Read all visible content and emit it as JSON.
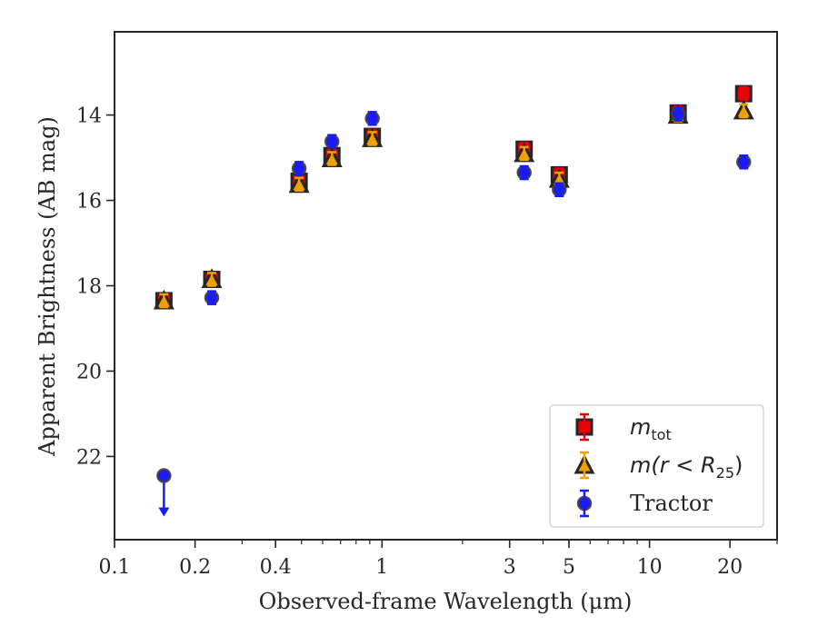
{
  "chart_data": {
    "type": "scatter",
    "title": "",
    "xlabel": "Observed-frame Wavelength (μm)",
    "ylabel": "Apparent Brightness (AB mag)",
    "xscale": "log",
    "xlim": [
      0.1,
      30
    ],
    "ylim": [
      23.95,
      12.05
    ],
    "y_inverted": true,
    "grid": false,
    "legend_position": "lower-right",
    "x_ticks": [
      {
        "value": 0.1,
        "label": "0.1"
      },
      {
        "value": 0.2,
        "label": "0.2"
      },
      {
        "value": 0.4,
        "label": "0.4"
      },
      {
        "value": 1,
        "label": "1"
      },
      {
        "value": 3,
        "label": "3"
      },
      {
        "value": 5,
        "label": "5"
      },
      {
        "value": 10,
        "label": "10"
      },
      {
        "value": 20,
        "label": "20"
      }
    ],
    "y_ticks": [
      {
        "value": 14,
        "label": "14"
      },
      {
        "value": 16,
        "label": "16"
      },
      {
        "value": 18,
        "label": "18"
      },
      {
        "value": 20,
        "label": "20"
      },
      {
        "value": 22,
        "label": "22"
      }
    ],
    "series": [
      {
        "name_main": "m",
        "name_sub": "tot",
        "marker": "square",
        "color": "#e8000b",
        "errorbar_color": "#e8000b",
        "points": [
          {
            "x": 0.153,
            "y": 18.35
          },
          {
            "x": 0.231,
            "y": 17.85
          },
          {
            "x": 0.49,
            "y": 15.55
          },
          {
            "x": 0.65,
            "y": 14.95
          },
          {
            "x": 0.92,
            "y": 14.5
          },
          {
            "x": 3.4,
            "y": 14.8
          },
          {
            "x": 4.6,
            "y": 15.4
          },
          {
            "x": 12.8,
            "y": 13.95
          },
          {
            "x": 22.5,
            "y": 13.5
          }
        ]
      },
      {
        "name_main": "m(r < R",
        "name_sub": "25",
        "name_tail": ")",
        "marker": "triangle",
        "color": "#f0a000",
        "errorbar_color": "#f0a000",
        "points": [
          {
            "x": 0.153,
            "y": 18.35
          },
          {
            "x": 0.231,
            "y": 17.85
          },
          {
            "x": 0.49,
            "y": 15.62
          },
          {
            "x": 0.65,
            "y": 15.02
          },
          {
            "x": 0.92,
            "y": 14.55
          },
          {
            "x": 3.4,
            "y": 14.9
          },
          {
            "x": 4.6,
            "y": 15.5
          },
          {
            "x": 12.8,
            "y": 14.0
          },
          {
            "x": 22.5,
            "y": 13.9
          }
        ]
      },
      {
        "name": "Tractor",
        "marker": "circle",
        "color": "#1a1aff",
        "errorbar_color": "#1a1aff",
        "points": [
          {
            "x": 0.153,
            "y": 22.45,
            "upper_limit": true
          },
          {
            "x": 0.231,
            "y": 18.28
          },
          {
            "x": 0.49,
            "y": 15.25
          },
          {
            "x": 0.65,
            "y": 14.62
          },
          {
            "x": 0.92,
            "y": 14.08
          },
          {
            "x": 3.4,
            "y": 15.35
          },
          {
            "x": 4.6,
            "y": 15.75
          },
          {
            "x": 12.8,
            "y": 13.98
          },
          {
            "x": 22.5,
            "y": 15.1
          }
        ]
      }
    ]
  }
}
